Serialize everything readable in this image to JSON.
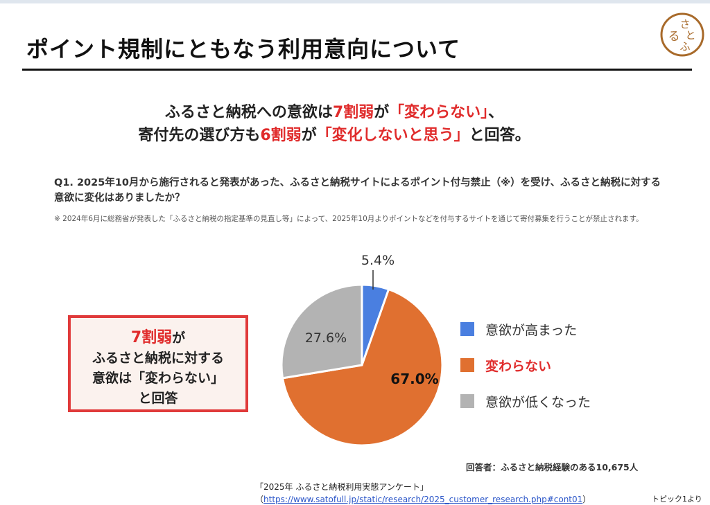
{
  "slide": {
    "title": "ポイント規制にともなう利用意向について",
    "logo_text": [
      "さ",
      "と",
      "ふ",
      "る"
    ]
  },
  "headline": {
    "line1_a": "ふるさと納税への意欲は",
    "line1_b": "7割弱",
    "line1_c": "が",
    "line1_d": "「変わらない」",
    "line1_e": "、",
    "line2_a": "寄付先の選び方も",
    "line2_b": "6割弱",
    "line2_c": "が",
    "line2_d": "「変化しないと思う」",
    "line2_e": "と回答。"
  },
  "question": {
    "text": "Q1. 2025年10月から施行されると発表があった、ふるさと納税サイトによるポイント付与禁止（※）を受け、ふるさと納税に対する意欲に変化はありましたか？",
    "note": "※ 2024年6月に総務省が発表した「ふるさと納税の指定基準の見直し等」によって、2025年10月よりポイントなどを付与するサイトを通じて寄付募集を行うことが禁止されます。"
  },
  "callout": {
    "line1_red": "7割弱",
    "line1_rest": "が",
    "line2": "ふるさと納税に対する",
    "line3": "意欲は「変わらない」",
    "line4": "と回答"
  },
  "chart_data": {
    "type": "pie",
    "categories": [
      "意欲が高まった",
      "変わらない",
      "意欲が低くなった"
    ],
    "values": [
      5.4,
      67.0,
      27.6
    ],
    "labels": [
      "5.4%",
      "67.0%",
      "27.6%"
    ],
    "colors": [
      "#4a7fe0",
      "#e07030",
      "#b3b3b3"
    ],
    "legend_position": "right"
  },
  "footer": {
    "respondents": "回答者：ふるさと納税経験のある10,675人",
    "source_title": "「2025年 ふるさと納税利用実態アンケート」",
    "source_open": "（",
    "source_url": "https://www.satofull.jp/static/research/2025_customer_research.php#cont01",
    "source_close": "）",
    "topic": "トピック1より"
  }
}
